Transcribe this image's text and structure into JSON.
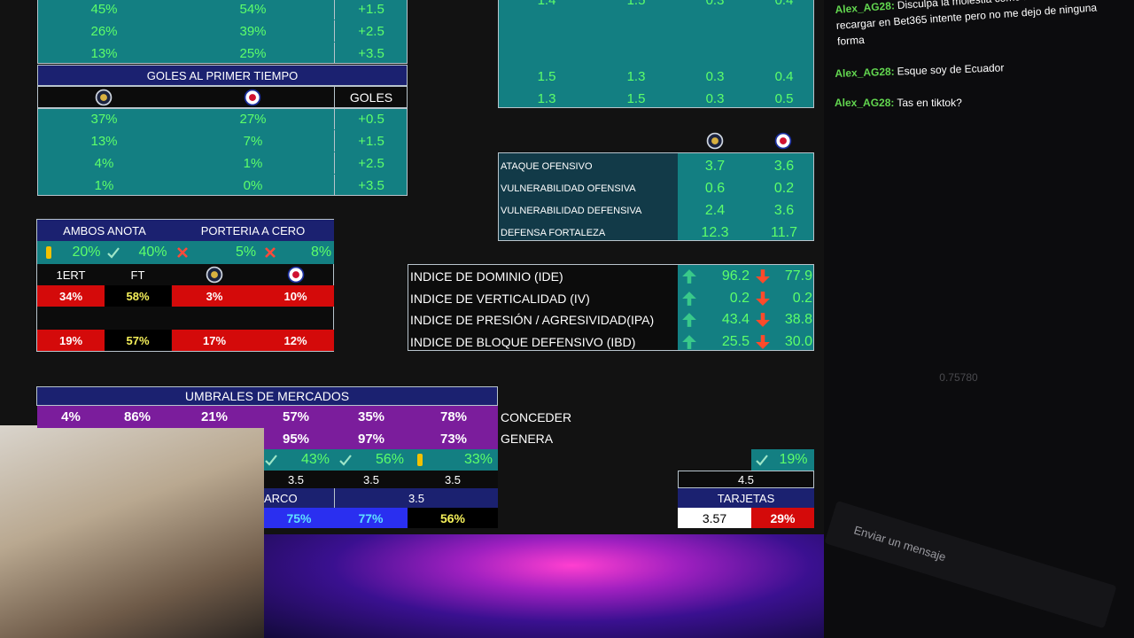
{
  "goles_total": {
    "rows": [
      [
        "45%",
        "54%",
        "+1.5"
      ],
      [
        "26%",
        "39%",
        "+2.5"
      ],
      [
        "13%",
        "25%",
        "+3.5"
      ]
    ]
  },
  "goles_primer_tiempo": {
    "title": "GOLES AL PRIMER TIEMPO",
    "column": "GOLES",
    "rows": [
      [
        "37%",
        "27%",
        "+0.5"
      ],
      [
        "13%",
        "7%",
        "+1.5"
      ],
      [
        "4%",
        "1%",
        "+2.5"
      ],
      [
        "1%",
        "0%",
        "+3.5"
      ]
    ]
  },
  "promedios": {
    "rows": [
      [
        "1.4",
        "1.5",
        "0.3",
        "0.4"
      ],
      [
        "1.5",
        "1.3",
        "0.3",
        "0.4"
      ],
      [
        "1.3",
        "1.5",
        "0.3",
        "0.5"
      ]
    ]
  },
  "ataque": {
    "rows": [
      {
        "label": "ATAQUE OFENSIVO",
        "home": "3.7",
        "away": "3.6"
      },
      {
        "label": "VULNERABILIDAD OFENSIVA",
        "home": "0.6",
        "away": "0.2"
      },
      {
        "label": "VULNERABILIDAD DEFENSIVA",
        "home": "2.4",
        "away": "3.6"
      },
      {
        "label": "DEFENSA FORTALEZA",
        "home": "12.3",
        "away": "11.7"
      }
    ]
  },
  "indices": {
    "rows": [
      {
        "label": "INDICE DE DOMINIO (IDE)",
        "home": "96.2",
        "away": "77.9"
      },
      {
        "label": "INDICE DE VERTICALIDAD (IV)",
        "home": "0.2",
        "away": "0.2"
      },
      {
        "label": "INDICE DE PRESIÓN / AGRESIVIDAD(IPA)",
        "home": "43.4",
        "away": "38.8"
      },
      {
        "label": "INDICE DE BLOQUE DEFENSIVO (IBD)",
        "home": "25.5",
        "away": "30.0"
      }
    ]
  },
  "ambos": {
    "ambos_anota": "AMBOS ANOTA",
    "porteria": "PORTERIA A CERO",
    "summary": [
      "20%",
      "40%",
      "5%",
      "8%"
    ],
    "headers": [
      "1ERT",
      "FT"
    ],
    "rows": [
      [
        "34%",
        "58%",
        "3%",
        "10%"
      ],
      [
        "19%",
        "57%",
        "17%",
        "12%"
      ]
    ]
  },
  "umbrales": {
    "title": "UMBRALES DE MERCADOS",
    "conceder": [
      "4%",
      "86%",
      "21%",
      "57%",
      "35%",
      "78%"
    ],
    "conceder_label": "CONCEDER",
    "genera": [
      "95%",
      "97%",
      "73%"
    ],
    "genera_label": "GENERA",
    "aciertos": [
      "43%",
      "56%",
      "33%"
    ],
    "lines": [
      "3.5",
      "3.5",
      "3.5"
    ],
    "arco": "ARCO",
    "arco_line": "3.5",
    "arco_values": [
      "75%",
      "77%",
      "56%"
    ]
  },
  "tarjetas": {
    "pct": "19%",
    "line": "4.5",
    "title": "TARJETAS",
    "avg": "3.57",
    "avg_pct": "29%"
  },
  "chat": {
    "messages": [
      {
        "user": "Alex_AG28:",
        "text": "Disculpa la molestia como haces tu para recargar en Bet365 intente pero no me dejo de ninguna forma"
      },
      {
        "user": "Alex_AG28:",
        "text": "Esque soy de Ecuador"
      },
      {
        "user": "Alex_AG28:",
        "text": "Tas en tiktok?"
      }
    ],
    "counter": "0.75780",
    "placeholder": "Enviar un mensaje"
  }
}
